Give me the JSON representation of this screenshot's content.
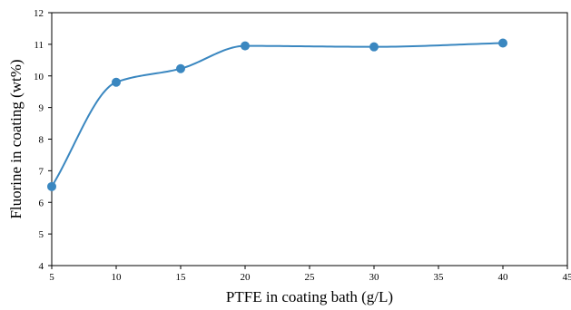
{
  "chart_data": {
    "type": "line",
    "title": "",
    "xlabel": "PTFE in coating bath (g/L)",
    "ylabel": "Fluorine in coating (wt%)",
    "xlim": [
      5,
      45
    ],
    "ylim": [
      4,
      12
    ],
    "xticks": [
      5,
      10,
      15,
      20,
      25,
      30,
      35,
      40,
      45
    ],
    "yticks": [
      4,
      5,
      6,
      7,
      8,
      9,
      10,
      11,
      12
    ],
    "grid": false,
    "legend": "none",
    "smooth": true,
    "series": [
      {
        "x": [
          5,
          10,
          15,
          20,
          30,
          40
        ],
        "y": [
          6.5,
          9.8,
          10.23,
          10.95,
          10.92,
          11.04
        ],
        "color": "#3a87c0",
        "marker_color": "#3a87c0"
      }
    ]
  }
}
